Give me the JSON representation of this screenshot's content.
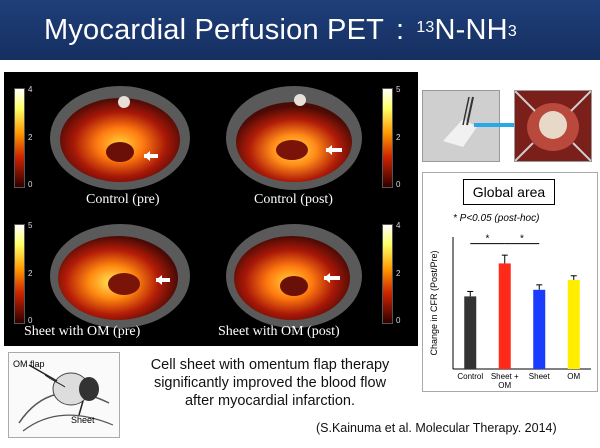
{
  "title": {
    "main": "Myocardial Perfusion PET",
    "separator": ":",
    "isotope_mass": "13",
    "compound": "N-NH",
    "subscript": "3"
  },
  "scans": [
    {
      "label": "Control (pre)",
      "scale_max": "4",
      "scale_mid": "2",
      "scale_min": "0"
    },
    {
      "label": "Control (post)",
      "scale_max": "5",
      "scale_mid": "2",
      "scale_min": "0"
    },
    {
      "label": "Sheet with OM (pre)",
      "scale_max": "5",
      "scale_mid": "2",
      "scale_min": "0"
    },
    {
      "label": "Sheet with OM (post)",
      "scale_max": "4",
      "scale_mid": "2",
      "scale_min": "0"
    }
  ],
  "chart": {
    "title": "Global area",
    "note": "* P<0.05 (post-hoc)",
    "significance_marker": "*"
  },
  "chart_data": {
    "type": "bar",
    "title": "Global area",
    "categories": [
      "Control",
      "Sheet + OM",
      "Sheet",
      "OM"
    ],
    "values": [
      0.88,
      1.28,
      0.96,
      1.08
    ],
    "errors": [
      0.06,
      0.1,
      0.06,
      0.05
    ],
    "colors": [
      "#333333",
      "#ff2a1a",
      "#1a3cff",
      "#ffee00"
    ],
    "ylabel": "Change in CFR (Post/Pre)",
    "ylim": [
      0,
      1.6
    ],
    "significance": [
      [
        0,
        1
      ],
      [
        1,
        2
      ]
    ]
  },
  "diagram_labels": {
    "flap": "OM flap",
    "sheet": "Sheet"
  },
  "caption": [
    "Cell sheet with omentum flap therapy",
    "significantly improved the blood flow",
    "after myocardial infarction."
  ],
  "citation": "(S.Kainuma et al. Molecular Therapy. 2014)"
}
